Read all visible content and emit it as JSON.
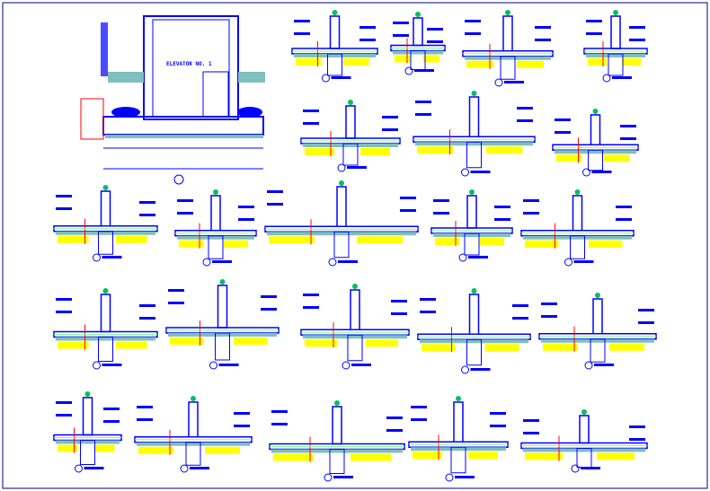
{
  "drawing": {
    "main_elevation_label": "ELEVATOR NO. 1",
    "colors": {
      "linework": "#0000ff",
      "hatch_fill": "#7fbfbf",
      "soil_hatch": "#ffff00",
      "dimension": "#ff0000",
      "insulation": "#80ff80",
      "frame": "#000080"
    },
    "detail_count": 24
  }
}
